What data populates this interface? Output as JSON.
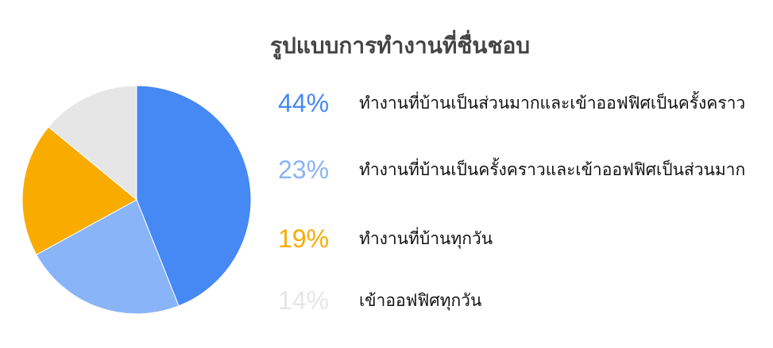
{
  "chart_data": {
    "type": "pie",
    "title": "รูปแบบการทำงานที่ชื่นชอบ",
    "start_angle": "top",
    "direction": "clockwise",
    "legend_position": "right",
    "slices": [
      {
        "label": "ทำงานที่บ้านเป็นส่วนมากและเข้าออฟฟิศเป็นครั้งคราว",
        "value": 44,
        "value_label": "44%",
        "color": "#4688F4"
      },
      {
        "label": "ทำงานที่บ้านเป็นครั้งคราวและเข้าออฟฟิศเป็นส่วนมาก",
        "value": 23,
        "value_label": "23%",
        "color": "#8AB4F8"
      },
      {
        "label": "ทำงานที่บ้านทุกวัน",
        "value": 19,
        "value_label": "19%",
        "color": "#F9AB00"
      },
      {
        "label": "เข้าออฟฟิศทุกวัน",
        "value": 14,
        "value_label": "14%",
        "color": "#E6E6E6"
      }
    ]
  }
}
